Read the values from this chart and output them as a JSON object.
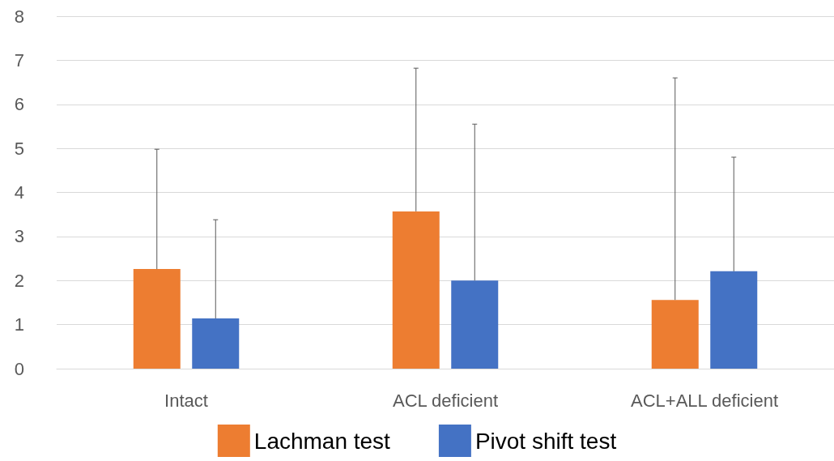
{
  "chart_data": {
    "type": "bar",
    "categories": [
      "Intact",
      "ACL deficient",
      "ACL+ALL deficient"
    ],
    "series": [
      {
        "name": "Lachman test",
        "color": "#ed7d31",
        "values": [
          2.26,
          3.57,
          1.56
        ],
        "errors": [
          [
            2.26,
            4.98
          ],
          [
            3.57,
            6.82
          ],
          [
            1.56,
            6.6
          ]
        ]
      },
      {
        "name": "Pivot shift test",
        "color": "#4472c4",
        "values": [
          1.14,
          2.0,
          2.21
        ],
        "errors": [
          [
            1.14,
            3.38
          ],
          [
            2.0,
            5.55
          ],
          [
            2.21,
            4.8
          ]
        ]
      }
    ],
    "ylim": [
      0,
      8
    ],
    "yticks": [
      0,
      1,
      2,
      3,
      4,
      5,
      6,
      7,
      8
    ],
    "grid": "y",
    "legend": "bottom"
  }
}
